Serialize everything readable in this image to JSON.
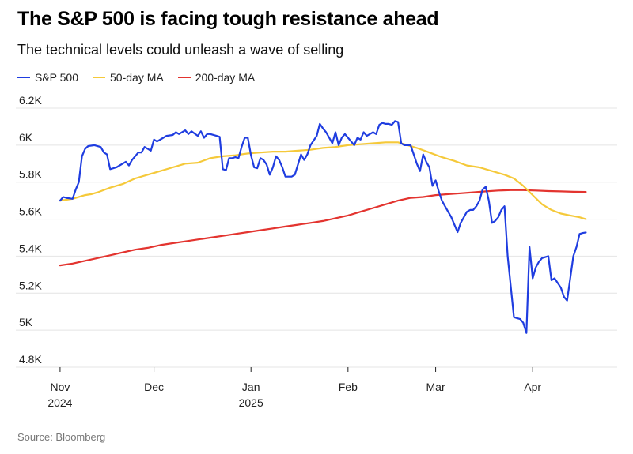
{
  "title": "The S&P 500 is facing tough resistance ahead",
  "subtitle": "The technical levels could unleash a wave of selling",
  "source": "Source: Bloomberg",
  "chart_data": {
    "type": "line",
    "title": "The S&P 500 is facing tough resistance ahead",
    "subtitle": "The technical levels could unleash a wave of selling",
    "xlabel": "",
    "ylabel": "",
    "ylim": [
      4800,
      6200
    ],
    "grid": true,
    "legend_position": "top-left",
    "yticks": [
      {
        "value": 4800,
        "label": "4.8K"
      },
      {
        "value": 5000,
        "label": "5K"
      },
      {
        "value": 5200,
        "label": "5.2K"
      },
      {
        "value": 5400,
        "label": "5.4K"
      },
      {
        "value": 5600,
        "label": "5.6K"
      },
      {
        "value": 5800,
        "label": "5.8K"
      },
      {
        "value": 6000,
        "label": "6K"
      },
      {
        "value": 6200,
        "label": "6.2K"
      }
    ],
    "xticks": [
      {
        "value": 0,
        "label": "Nov",
        "sub": "2024"
      },
      {
        "value": 30,
        "label": "Dec",
        "sub": ""
      },
      {
        "value": 61,
        "label": "Jan",
        "sub": "2025"
      },
      {
        "value": 92,
        "label": "Feb",
        "sub": ""
      },
      {
        "value": 120,
        "label": "Mar",
        "sub": ""
      },
      {
        "value": 151,
        "label": "Apr",
        "sub": ""
      }
    ],
    "xlim": [
      -2,
      178
    ],
    "x_unit": "days since Nov 1, 2024",
    "series": [
      {
        "name": "S&P 500",
        "color": "#1f3de0",
        "points": [
          [
            0,
            5700
          ],
          [
            1,
            5720
          ],
          [
            2,
            5715
          ],
          [
            4,
            5710
          ],
          [
            5,
            5760
          ],
          [
            6,
            5800
          ],
          [
            7,
            5940
          ],
          [
            8,
            5980
          ],
          [
            9,
            5995
          ],
          [
            11,
            6000
          ],
          [
            13,
            5990
          ],
          [
            14,
            5960
          ],
          [
            15,
            5950
          ],
          [
            16,
            5870
          ],
          [
            18,
            5880
          ],
          [
            20,
            5900
          ],
          [
            21,
            5910
          ],
          [
            22,
            5890
          ],
          [
            23,
            5920
          ],
          [
            24,
            5940
          ],
          [
            25,
            5960
          ],
          [
            26,
            5960
          ],
          [
            27,
            5990
          ],
          [
            28,
            5980
          ],
          [
            29,
            5970
          ],
          [
            30,
            6030
          ],
          [
            31,
            6020
          ],
          [
            33,
            6040
          ],
          [
            34,
            6050
          ],
          [
            36,
            6055
          ],
          [
            37,
            6070
          ],
          [
            38,
            6060
          ],
          [
            40,
            6080
          ],
          [
            41,
            6060
          ],
          [
            42,
            6075
          ],
          [
            44,
            6050
          ],
          [
            45,
            6075
          ],
          [
            46,
            6040
          ],
          [
            47,
            6060
          ],
          [
            48,
            6060
          ],
          [
            50,
            6050
          ],
          [
            51,
            6045
          ],
          [
            52,
            5870
          ],
          [
            53,
            5865
          ],
          [
            54,
            5930
          ],
          [
            55,
            5930
          ],
          [
            56,
            5935
          ],
          [
            57,
            5930
          ],
          [
            58,
            5990
          ],
          [
            59,
            6040
          ],
          [
            60,
            6040
          ],
          [
            61,
            5945
          ],
          [
            62,
            5880
          ],
          [
            63,
            5875
          ],
          [
            64,
            5930
          ],
          [
            65,
            5920
          ],
          [
            66,
            5895
          ],
          [
            67,
            5840
          ],
          [
            68,
            5880
          ],
          [
            69,
            5940
          ],
          [
            70,
            5920
          ],
          [
            71,
            5880
          ],
          [
            72,
            5830
          ],
          [
            74,
            5830
          ],
          [
            75,
            5840
          ],
          [
            77,
            5950
          ],
          [
            78,
            5920
          ],
          [
            79,
            5950
          ],
          [
            80,
            6000
          ],
          [
            82,
            6050
          ],
          [
            83,
            6115
          ],
          [
            84,
            6090
          ],
          [
            85,
            6070
          ],
          [
            86,
            6040
          ],
          [
            87,
            6010
          ],
          [
            88,
            6070
          ],
          [
            89,
            6000
          ],
          [
            90,
            6040
          ],
          [
            91,
            6060
          ],
          [
            92,
            6040
          ],
          [
            93,
            6020
          ],
          [
            94,
            6000
          ],
          [
            95,
            6040
          ],
          [
            96,
            6030
          ],
          [
            97,
            6070
          ],
          [
            98,
            6050
          ],
          [
            99,
            6060
          ],
          [
            100,
            6070
          ],
          [
            101,
            6060
          ],
          [
            102,
            6110
          ],
          [
            103,
            6120
          ],
          [
            104,
            6115
          ],
          [
            105,
            6115
          ],
          [
            106,
            6110
          ],
          [
            107,
            6130
          ],
          [
            108,
            6125
          ],
          [
            109,
            6010
          ],
          [
            110,
            6000
          ],
          [
            112,
            6000
          ],
          [
            113,
            5950
          ],
          [
            114,
            5900
          ],
          [
            115,
            5860
          ],
          [
            116,
            5950
          ],
          [
            117,
            5910
          ],
          [
            118,
            5880
          ],
          [
            119,
            5780
          ],
          [
            120,
            5810
          ],
          [
            121,
            5750
          ],
          [
            122,
            5700
          ],
          [
            123,
            5670
          ],
          [
            124,
            5640
          ],
          [
            125,
            5610
          ],
          [
            126,
            5570
          ],
          [
            127,
            5530
          ],
          [
            128,
            5580
          ],
          [
            129,
            5610
          ],
          [
            130,
            5640
          ],
          [
            131,
            5650
          ],
          [
            132,
            5650
          ],
          [
            133,
            5670
          ],
          [
            134,
            5700
          ],
          [
            135,
            5760
          ],
          [
            136,
            5775
          ],
          [
            137,
            5700
          ],
          [
            138,
            5580
          ],
          [
            139,
            5590
          ],
          [
            140,
            5610
          ],
          [
            141,
            5650
          ],
          [
            142,
            5670
          ],
          [
            143,
            5400
          ],
          [
            145,
            5070
          ],
          [
            146,
            5065
          ],
          [
            147,
            5060
          ],
          [
            148,
            5040
          ],
          [
            149,
            4985
          ],
          [
            150,
            5450
          ],
          [
            151,
            5280
          ],
          [
            152,
            5340
          ],
          [
            153,
            5370
          ],
          [
            154,
            5390
          ],
          [
            156,
            5400
          ],
          [
            157,
            5270
          ],
          [
            158,
            5280
          ],
          [
            160,
            5230
          ],
          [
            161,
            5180
          ],
          [
            162,
            5160
          ],
          [
            163,
            5280
          ],
          [
            164,
            5400
          ],
          [
            165,
            5450
          ],
          [
            166,
            5520
          ],
          [
            167,
            5525
          ],
          [
            168,
            5528
          ]
        ]
      },
      {
        "name": "50-day MA",
        "color": "#f5c93a",
        "points": [
          [
            0,
            5700
          ],
          [
            2,
            5705
          ],
          [
            4,
            5710
          ],
          [
            8,
            5730
          ],
          [
            10,
            5735
          ],
          [
            12,
            5745
          ],
          [
            16,
            5770
          ],
          [
            20,
            5790
          ],
          [
            24,
            5820
          ],
          [
            28,
            5840
          ],
          [
            32,
            5860
          ],
          [
            36,
            5880
          ],
          [
            40,
            5900
          ],
          [
            44,
            5905
          ],
          [
            48,
            5930
          ],
          [
            52,
            5940
          ],
          [
            56,
            5945
          ],
          [
            60,
            5955
          ],
          [
            64,
            5960
          ],
          [
            68,
            5965
          ],
          [
            72,
            5965
          ],
          [
            76,
            5970
          ],
          [
            80,
            5975
          ],
          [
            84,
            5985
          ],
          [
            88,
            5990
          ],
          [
            92,
            6000
          ],
          [
            96,
            6005
          ],
          [
            100,
            6010
          ],
          [
            104,
            6015
          ],
          [
            108,
            6015
          ],
          [
            110,
            6005
          ],
          [
            114,
            5985
          ],
          [
            118,
            5960
          ],
          [
            122,
            5935
          ],
          [
            126,
            5915
          ],
          [
            130,
            5890
          ],
          [
            134,
            5880
          ],
          [
            138,
            5860
          ],
          [
            142,
            5840
          ],
          [
            145,
            5820
          ],
          [
            148,
            5780
          ],
          [
            151,
            5730
          ],
          [
            154,
            5680
          ],
          [
            157,
            5650
          ],
          [
            160,
            5630
          ],
          [
            163,
            5620
          ],
          [
            166,
            5610
          ],
          [
            168,
            5600
          ]
        ]
      },
      {
        "name": "200-day MA",
        "color": "#e3342f",
        "points": [
          [
            0,
            5350
          ],
          [
            4,
            5360
          ],
          [
            8,
            5375
          ],
          [
            12,
            5390
          ],
          [
            16,
            5405
          ],
          [
            20,
            5420
          ],
          [
            24,
            5435
          ],
          [
            28,
            5445
          ],
          [
            32,
            5460
          ],
          [
            36,
            5470
          ],
          [
            40,
            5480
          ],
          [
            44,
            5490
          ],
          [
            48,
            5500
          ],
          [
            52,
            5510
          ],
          [
            56,
            5520
          ],
          [
            60,
            5530
          ],
          [
            64,
            5540
          ],
          [
            68,
            5550
          ],
          [
            72,
            5560
          ],
          [
            76,
            5570
          ],
          [
            80,
            5580
          ],
          [
            84,
            5590
          ],
          [
            88,
            5605
          ],
          [
            92,
            5620
          ],
          [
            96,
            5640
          ],
          [
            100,
            5660
          ],
          [
            104,
            5680
          ],
          [
            108,
            5700
          ],
          [
            112,
            5715
          ],
          [
            116,
            5720
          ],
          [
            120,
            5730
          ],
          [
            124,
            5735
          ],
          [
            128,
            5740
          ],
          [
            132,
            5745
          ],
          [
            136,
            5750
          ],
          [
            140,
            5755
          ],
          [
            144,
            5757
          ],
          [
            148,
            5757
          ],
          [
            152,
            5755
          ],
          [
            156,
            5752
          ],
          [
            160,
            5750
          ],
          [
            164,
            5748
          ],
          [
            168,
            5747
          ]
        ]
      }
    ]
  }
}
